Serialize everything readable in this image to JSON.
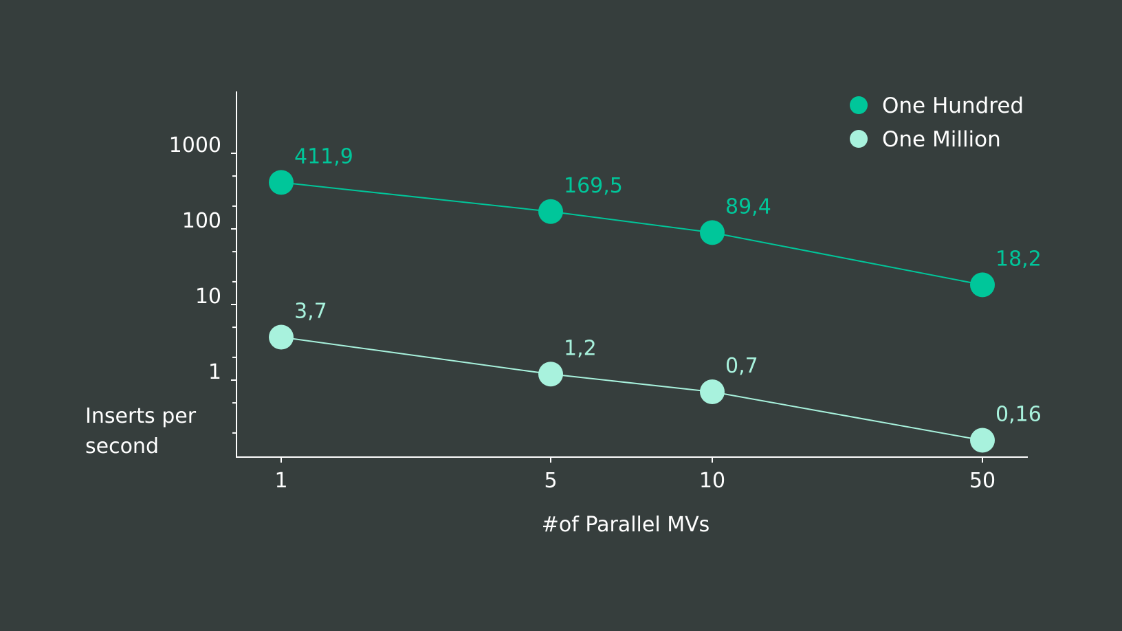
{
  "chart_data": {
    "type": "line",
    "title": "",
    "xlabel": "#of Parallel MVs",
    "ylabel": "Inserts per second",
    "ylabel_lines": [
      "Inserts per",
      "second"
    ],
    "x_scale": "categorical",
    "y_scale": "log",
    "x": [
      "1",
      "5",
      "10",
      "50"
    ],
    "y_ticks": [
      "1000",
      "100",
      "10",
      "1"
    ],
    "series": [
      {
        "name": "One Hundred",
        "color": "#00c69a",
        "values": [
          411.9,
          169.5,
          89.4,
          18.2
        ],
        "labels": [
          "411,9",
          "169,5",
          "89,4",
          "18,2"
        ]
      },
      {
        "name": "One Million",
        "color": "#a8f2dd",
        "values": [
          3.7,
          1.2,
          0.7,
          0.16
        ],
        "labels": [
          "3,7",
          "1,2",
          "0,7",
          "0,16"
        ]
      }
    ],
    "legend": "top-right",
    "grid": false
  },
  "colors": {
    "background": "#363e3d",
    "axis": "#ffffff",
    "text": "#ffffff"
  }
}
